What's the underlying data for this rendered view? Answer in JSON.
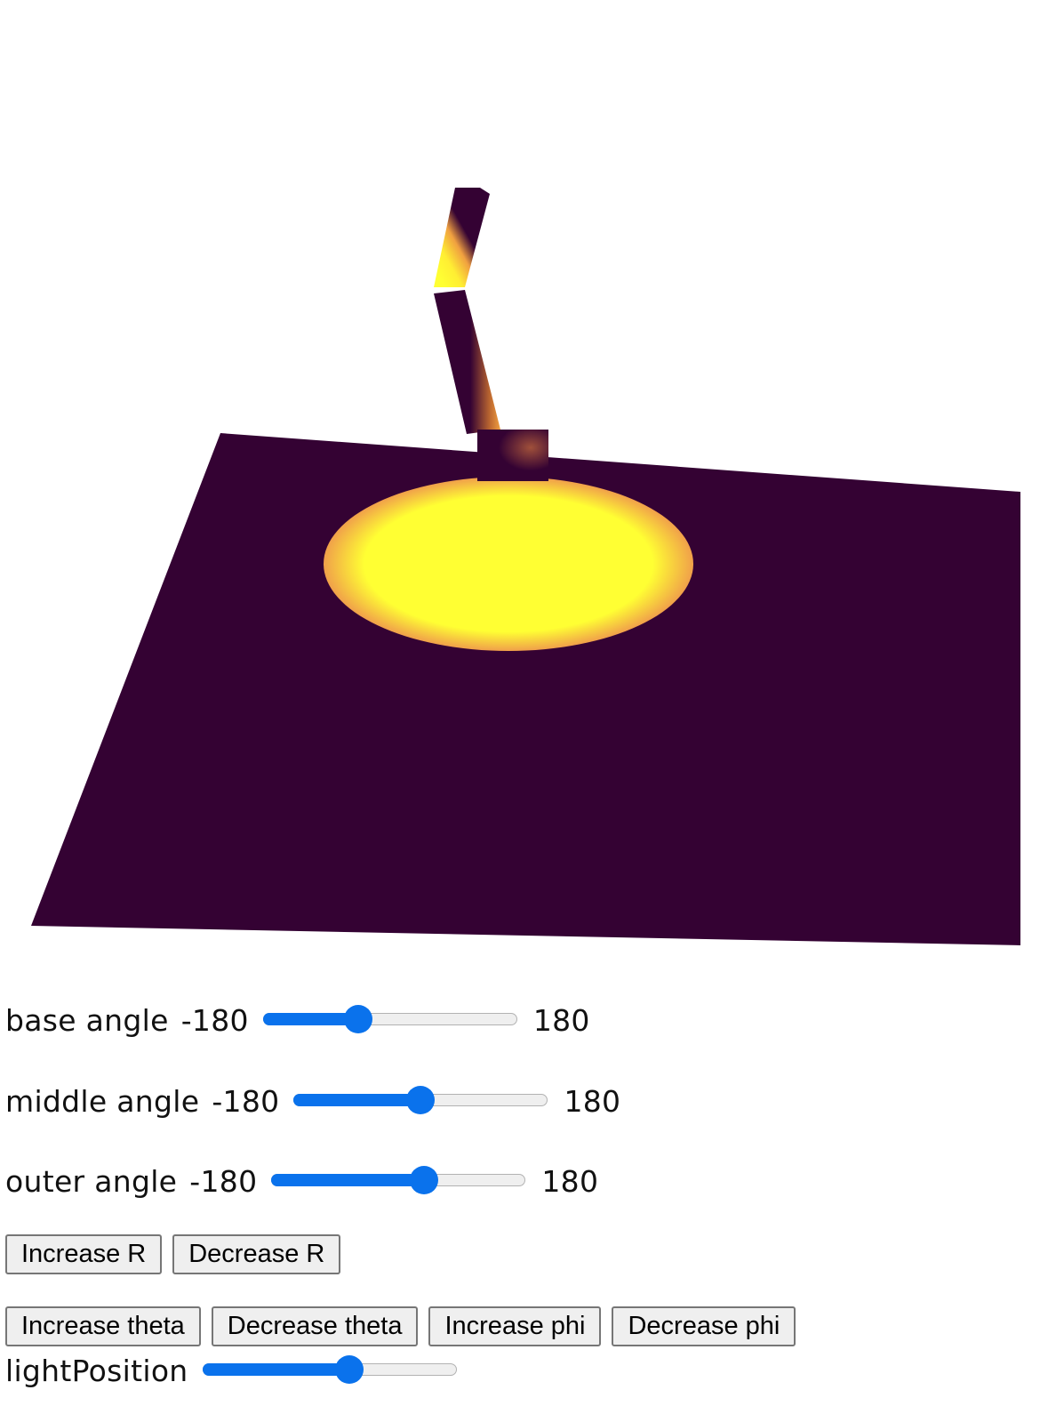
{
  "scene": {
    "colors": {
      "background": "#ffffff",
      "floor": "#340233",
      "arm_dark": "#340233",
      "light_core": "#ffff33",
      "light_edge": "#f0a04a"
    }
  },
  "controls": {
    "base_angle": {
      "label": "base angle",
      "min_label": "-180",
      "max_label": "180",
      "min": -180,
      "max": 180,
      "value": -45
    },
    "middle_angle": {
      "label": "middle angle",
      "min_label": "-180",
      "max_label": "180",
      "min": -180,
      "max": 180,
      "value": 0
    },
    "outer_angle": {
      "label": "outer angle",
      "min_label": "-180",
      "max_label": "180",
      "min": -180,
      "max": 180,
      "value": 36
    },
    "light_position": {
      "label": "lightPosition",
      "value_fraction": 0.58
    }
  },
  "buttons": {
    "increase_r": "Increase R",
    "decrease_r": "Decrease R",
    "increase_theta": "Increase theta",
    "decrease_theta": "Decrease theta",
    "increase_phi": "Increase phi",
    "decrease_phi": "Decrease phi"
  }
}
